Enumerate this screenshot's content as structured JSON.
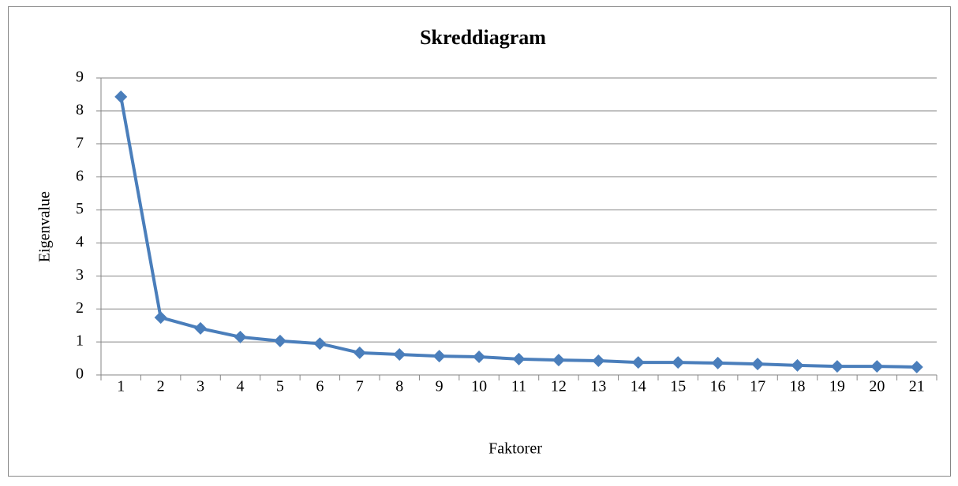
{
  "chart_data": {
    "type": "line",
    "title": "Skreddiagram",
    "x_label": "Faktorer",
    "y_label": "Eigenvalue",
    "categories": [
      "1",
      "2",
      "3",
      "4",
      "5",
      "6",
      "7",
      "8",
      "9",
      "10",
      "11",
      "12",
      "13",
      "14",
      "15",
      "16",
      "17",
      "18",
      "19",
      "20",
      "21"
    ],
    "series": [
      {
        "name": "Eigenvalue",
        "color": "#4a7ebb",
        "values": [
          8.43,
          1.74,
          1.41,
          1.15,
          1.03,
          0.95,
          0.67,
          0.62,
          0.57,
          0.55,
          0.48,
          0.45,
          0.43,
          0.38,
          0.38,
          0.36,
          0.33,
          0.29,
          0.26,
          0.26,
          0.24
        ]
      }
    ],
    "ylim": [
      0,
      9
    ],
    "yticks": [
      0,
      1,
      2,
      3,
      4,
      5,
      6,
      7,
      8,
      9
    ],
    "grid": true
  }
}
